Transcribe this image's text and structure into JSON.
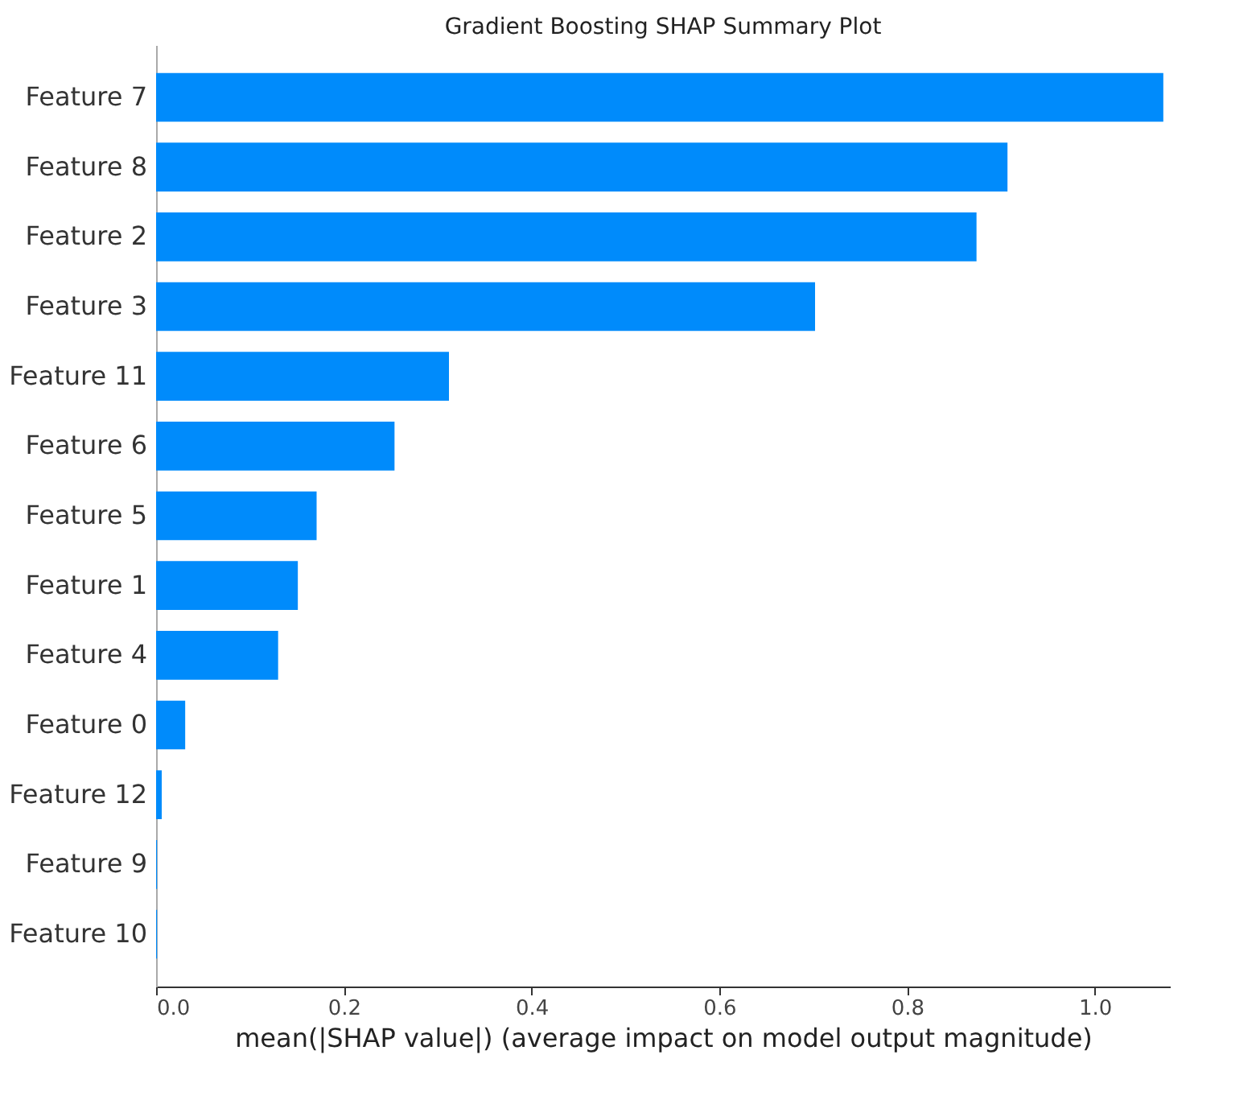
{
  "chart_data": {
    "type": "bar",
    "orientation": "horizontal",
    "title": "Gradient Boosting SHAP Summary Plot",
    "xlabel": "mean(|SHAP value|) (average impact on model output magnitude)",
    "categories": [
      "Feature 7",
      "Feature 8",
      "Feature 2",
      "Feature 3",
      "Feature 11",
      "Feature 6",
      "Feature 5",
      "Feature 1",
      "Feature 4",
      "Feature 0",
      "Feature 12",
      "Feature 9",
      "Feature 10"
    ],
    "values": [
      1.073,
      0.907,
      0.874,
      0.702,
      0.312,
      0.254,
      0.171,
      0.151,
      0.13,
      0.031,
      0.006,
      0.001,
      0.001
    ],
    "color": "#008bfb",
    "xlim": [
      0,
      1.08
    ],
    "xticks": [
      {
        "value": 0,
        "label": "0.0"
      },
      {
        "value": 0.2,
        "label": "0.2"
      },
      {
        "value": 0.4,
        "label": "0.4"
      },
      {
        "value": 0.6,
        "label": "0.6"
      },
      {
        "value": 0.8,
        "label": "0.8"
      },
      {
        "value": 1.0,
        "label": "1.0"
      }
    ],
    "grid": false
  }
}
